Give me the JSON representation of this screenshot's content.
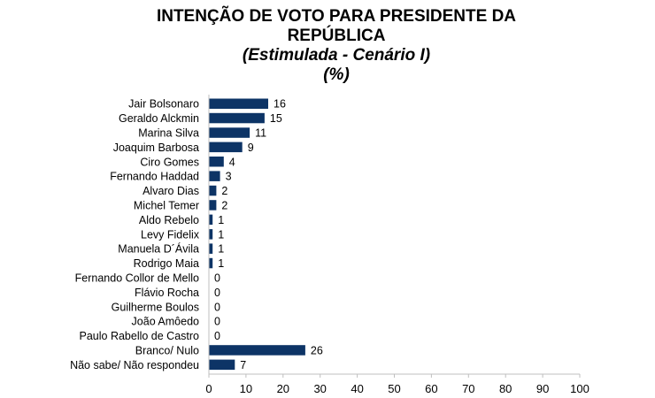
{
  "colors": {
    "bar": "#0d3466",
    "axis": "#bfbfbf",
    "text": "#000000"
  },
  "chart_data": {
    "type": "bar",
    "orientation": "horizontal",
    "title_lines": [
      "INTENÇÃO DE VOTO PARA PRESIDENTE DA",
      "REPÚBLICA"
    ],
    "subtitle": "(Estimulada - Cenário I)",
    "unit": "(%)",
    "categories": [
      "Jair Bolsonaro",
      "Geraldo Alckmin",
      "Marina Silva",
      "Joaquim Barbosa",
      "Ciro Gomes",
      "Fernando Haddad",
      "Alvaro Dias",
      "Michel Temer",
      "Aldo Rebelo",
      "Levy Fidelix",
      "Manuela D´Ávila",
      "Rodrigo Maia",
      "Fernando Collor de Mello",
      "Flávio Rocha",
      "Guilherme Boulos",
      "João Amôedo",
      "Paulo Rabello de Castro",
      "Branco/ Nulo",
      "Não sabe/ Não respondeu"
    ],
    "values": [
      16,
      15,
      11,
      9,
      4,
      3,
      2,
      2,
      1,
      1,
      1,
      1,
      0,
      0,
      0,
      0,
      0,
      26,
      7
    ],
    "xlim": [
      0,
      100
    ],
    "xticks": [
      0,
      10,
      20,
      30,
      40,
      50,
      60,
      70,
      80,
      90,
      100
    ],
    "grid": false,
    "legend": "none"
  }
}
